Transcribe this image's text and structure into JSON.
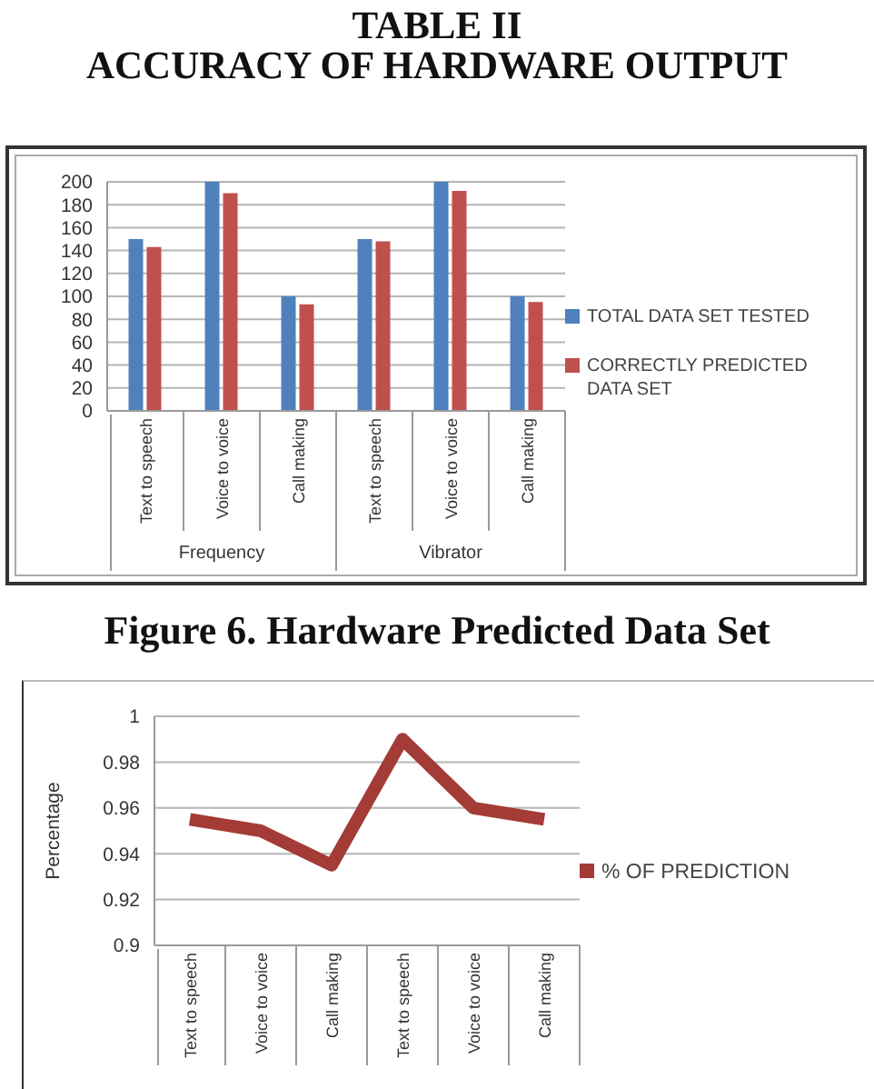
{
  "chart_data": [
    {
      "type": "bar",
      "title": "TABLE II\nACCURACY OF HARDWARE OUTPUT",
      "subtitle": "Figure 6. Hardware Predicted Data Set",
      "categories": [
        "Text to speech",
        "Voice to voice",
        "Call making",
        "Text to speech",
        "Voice to voice",
        "Call making"
      ],
      "series": [
        {
          "name": "TOTAL DATA SET TESTED",
          "color": "#4f81bd",
          "values": [
            150,
            200,
            100,
            150,
            200,
            100
          ]
        },
        {
          "name": "CORRECTLY PREDICTED DATA SET",
          "color": "#c0504d",
          "values": [
            143,
            190,
            93,
            148,
            192,
            95
          ]
        }
      ],
      "annotations": [
        "Frequency",
        "Vibrator"
      ],
      "ylim": [
        0,
        200
      ],
      "yticks": [
        0,
        20,
        40,
        60,
        80,
        100,
        120,
        140,
        160,
        180,
        200
      ],
      "grid": "y",
      "legend": "right"
    },
    {
      "type": "line",
      "ylabel": "Percentage",
      "categories": [
        "Text to speech",
        "Voice to voice",
        "Call making",
        "Text to speech",
        "Voice to voice",
        "Call making"
      ],
      "series": [
        {
          "name": "% OF PREDICTION",
          "color": "#a33b36",
          "values": [
            0.955,
            0.95,
            0.935,
            0.99,
            0.96,
            0.955
          ]
        }
      ],
      "ylim": [
        0.9,
        1
      ],
      "yticks": [
        0.9,
        0.92,
        0.94,
        0.96,
        0.98,
        1
      ],
      "grid": "y",
      "legend": "right",
      "marker": "none"
    }
  ]
}
